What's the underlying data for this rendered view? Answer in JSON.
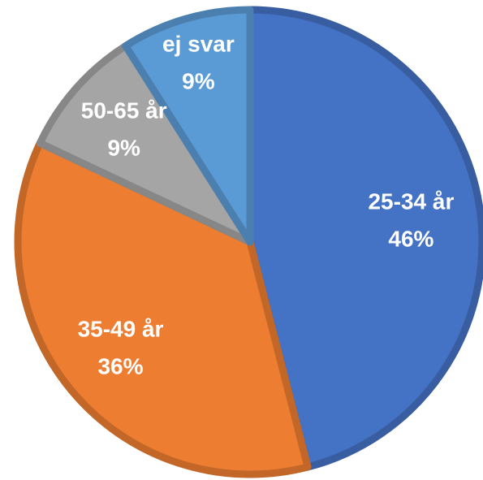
{
  "chart_data": {
    "type": "pie",
    "categories": [
      "25-34 år",
      "35-49 år",
      "50-65 år",
      "ej svar"
    ],
    "values": [
      46,
      36,
      9,
      9
    ],
    "value_labels": [
      "46%",
      "36%",
      "9%",
      "9%"
    ],
    "colors": [
      "#4472c4",
      "#ed7d31",
      "#a5a5a5",
      "#5b9bd5"
    ]
  }
}
